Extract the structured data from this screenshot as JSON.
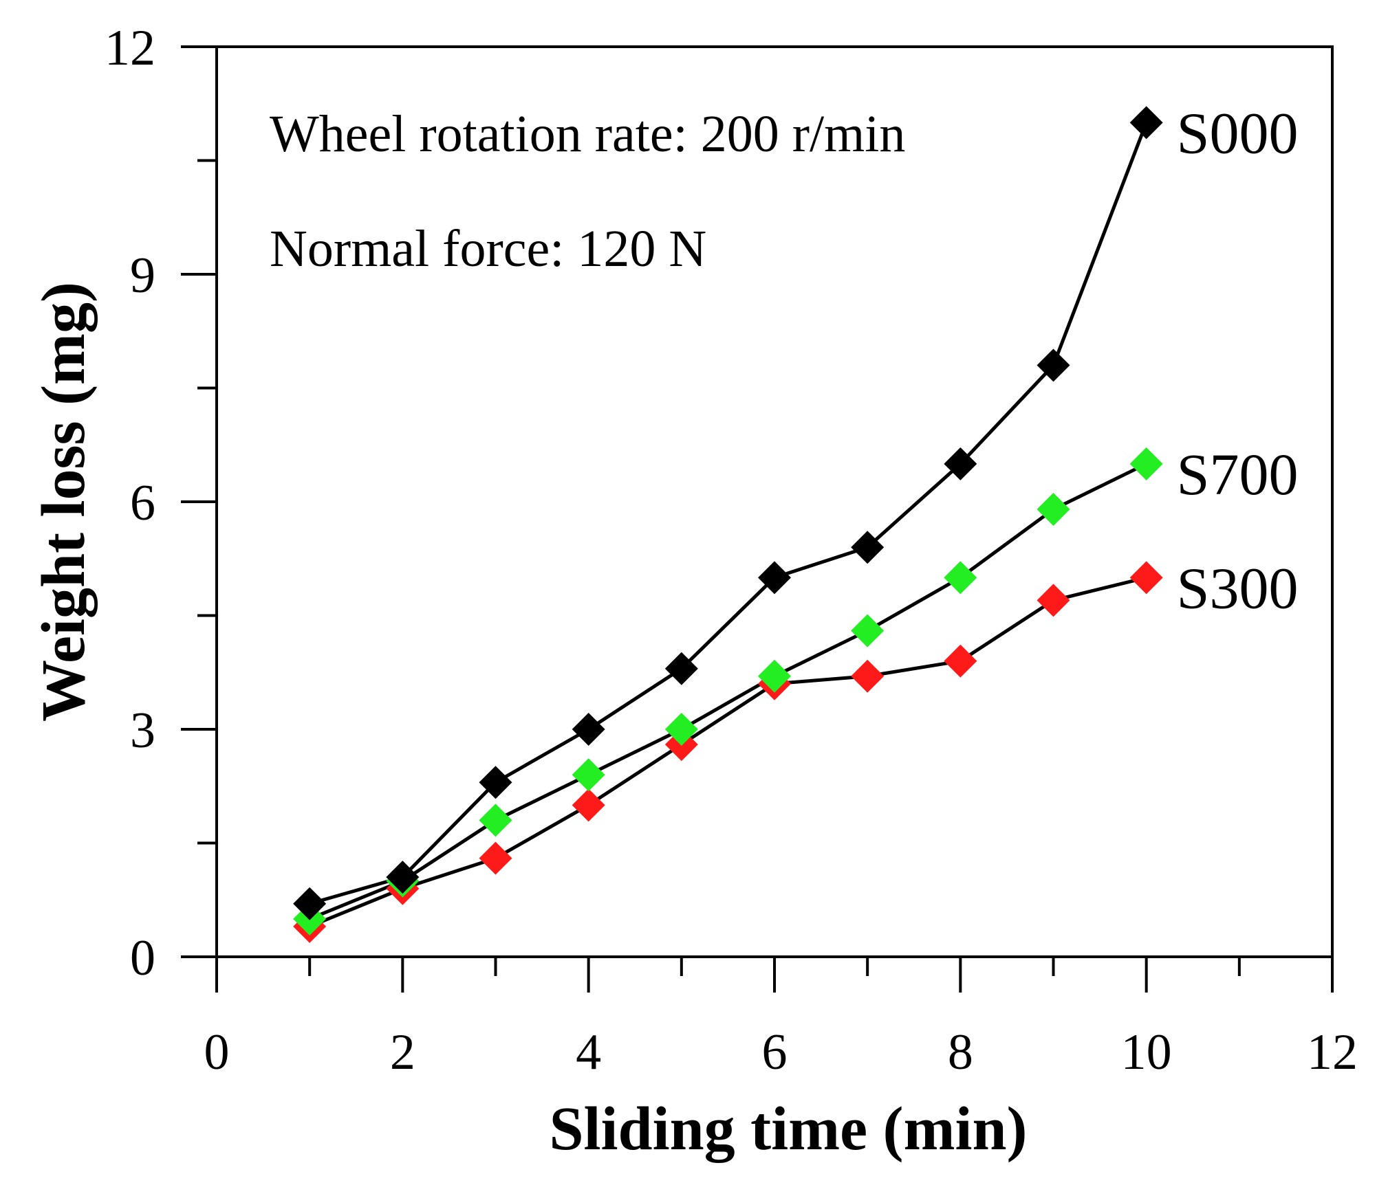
{
  "chart_data": {
    "type": "line",
    "xlabel": "Sliding time (min)",
    "ylabel": "Weight loss (mg)",
    "xlim": [
      0,
      12
    ],
    "ylim": [
      0,
      12
    ],
    "x_ticks": [
      0,
      2,
      4,
      6,
      8,
      10,
      12
    ],
    "x_minor_ticks": [
      1,
      3,
      5,
      7,
      9,
      11
    ],
    "y_ticks": [
      0,
      3,
      6,
      9,
      12
    ],
    "y_minor_ticks": [
      1.5,
      4.5,
      7.5,
      10.5
    ],
    "grid": false,
    "marker": "diamond",
    "annotations": [
      "Wheel rotation rate: 200 r/min",
      "Normal force: 120 N"
    ],
    "x": [
      1,
      2,
      3,
      4,
      5,
      6,
      7,
      8,
      9,
      10
    ],
    "series": [
      {
        "name": "S000",
        "color": "#000000",
        "values": [
          0.7,
          1.05,
          2.3,
          3.0,
          3.8,
          5.0,
          5.4,
          6.5,
          7.8,
          11.0
        ]
      },
      {
        "name": "S700",
        "color": "#22ee22",
        "values": [
          0.5,
          1.0,
          1.8,
          2.4,
          3.0,
          3.7,
          4.3,
          5.0,
          5.9,
          6.5
        ]
      },
      {
        "name": "S300",
        "color": "#ff1a1a",
        "values": [
          0.4,
          0.9,
          1.3,
          2.0,
          2.8,
          3.6,
          3.7,
          3.9,
          4.7,
          5.0
        ]
      }
    ]
  }
}
